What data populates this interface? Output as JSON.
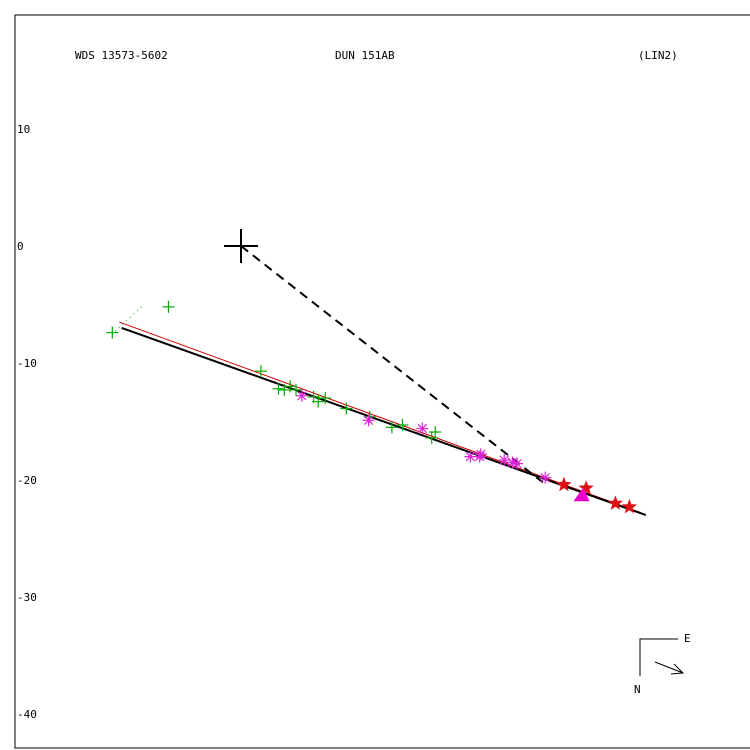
{
  "header": {
    "left": "WDS 13573-5602",
    "center": "DUN 151AB",
    "right": "(LIN2)"
  },
  "compass": {
    "east": "E",
    "north": "N"
  },
  "chart_data": {
    "type": "scatter",
    "title": "",
    "xlabel": "",
    "ylabel": "",
    "xlim": [
      -21,
      42
    ],
    "ylim": [
      -43,
      20
    ],
    "yticks": [
      10,
      0,
      -10,
      -20,
      -30,
      -40
    ],
    "primary": [
      0,
      0
    ],
    "fit_line": {
      "from": [
        -10.2,
        -7.0
      ],
      "to": [
        34.6,
        -23.0
      ],
      "color": "#000000"
    },
    "alt_fit_line": {
      "from": [
        -10.4,
        -6.5
      ],
      "to": [
        34.2,
        -22.8
      ],
      "color": "#cc0000"
    },
    "dashed_line": {
      "from": [
        0,
        0
      ],
      "to": [
        25.8,
        -20.2
      ]
    },
    "dotted_line": {
      "from": [
        -8.5,
        -5.2
      ],
      "to": [
        -11.0,
        -7.5
      ]
    },
    "series": [
      {
        "marker": "plus",
        "color": "#00aa00",
        "points": [
          [
            -11.0,
            -7.4
          ],
          [
            -6.2,
            -5.2
          ],
          [
            1.7,
            -10.7
          ],
          [
            3.2,
            -12.2
          ],
          [
            3.7,
            -12.3
          ],
          [
            4.2,
            -12.0
          ],
          [
            4.7,
            -12.3
          ],
          [
            6.2,
            -12.9
          ],
          [
            6.6,
            -13.3
          ],
          [
            7.2,
            -13.0
          ],
          [
            9.0,
            -13.9
          ],
          [
            11.0,
            -14.6
          ],
          [
            12.9,
            -15.5
          ],
          [
            13.8,
            -15.3
          ],
          [
            16.3,
            -16.4
          ],
          [
            16.6,
            -15.9
          ]
        ]
      },
      {
        "marker": "asterisk",
        "color": "#dd22dd",
        "points": [
          [
            5.2,
            -12.8
          ],
          [
            10.9,
            -14.9
          ],
          [
            15.5,
            -15.6
          ],
          [
            19.6,
            -18.0
          ],
          [
            20.4,
            -18.0
          ],
          [
            20.5,
            -17.8
          ],
          [
            22.5,
            -18.3
          ],
          [
            23.2,
            -18.5
          ],
          [
            23.6,
            -18.6
          ],
          [
            26.0,
            -19.8
          ]
        ]
      },
      {
        "marker": "star",
        "color": "#dd1111",
        "points": [
          [
            27.6,
            -20.4
          ],
          [
            29.5,
            -20.7
          ],
          [
            32.0,
            -22.0
          ],
          [
            33.2,
            -22.3
          ]
        ]
      },
      {
        "marker": "triangle",
        "color": "#ee00cc",
        "points": [
          [
            29.1,
            -21.3
          ]
        ]
      }
    ]
  }
}
